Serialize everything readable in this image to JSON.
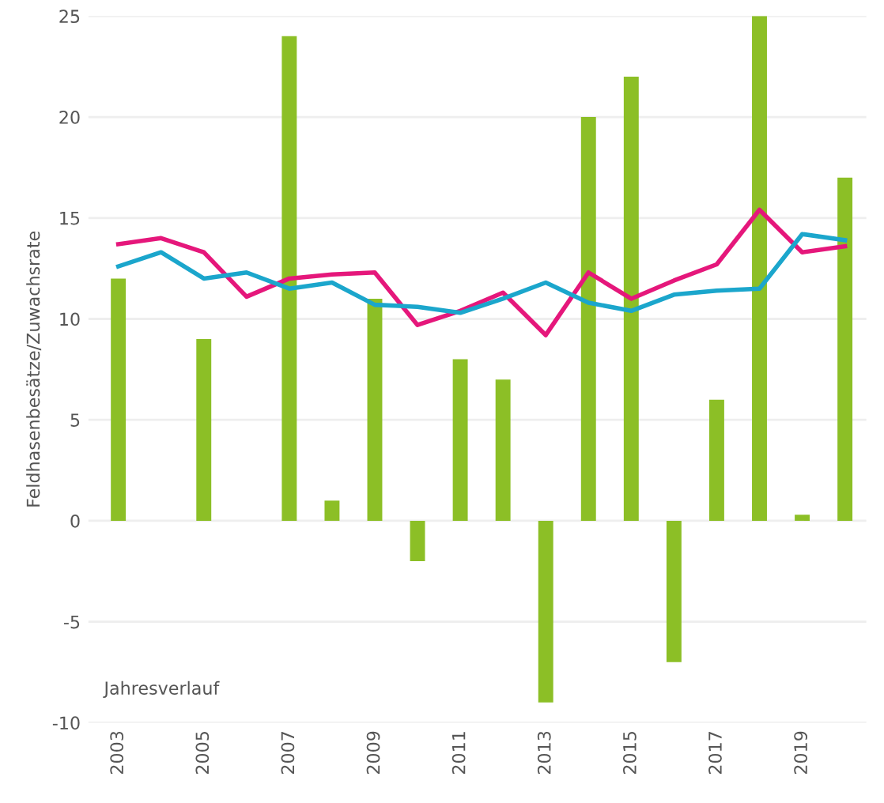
{
  "chart_data": {
    "type": "bar",
    "ylabel": "Feldhasenbesätze/Zuwachsrate",
    "annotations": [
      "Jahresverlauf"
    ],
    "categories": [
      "2003",
      null,
      "2005",
      null,
      "2007",
      null,
      "2009",
      null,
      "2011",
      null,
      "2013",
      null,
      "2015",
      null,
      "2017",
      null,
      "2019",
      null
    ],
    "series": [
      {
        "color": "#8cbf26",
        "values": [
          12,
          0,
          9,
          0,
          24,
          1,
          11,
          -2,
          8,
          7,
          -9,
          20,
          22,
          -7,
          6,
          25,
          0.3,
          17
        ]
      },
      {
        "type": "line",
        "color": "#e5177b",
        "values": [
          13.7,
          14.0,
          13.3,
          11.1,
          12.0,
          12.2,
          12.3,
          9.7,
          10.4,
          11.3,
          9.2,
          12.3,
          11.0,
          11.9,
          12.7,
          15.4,
          13.3,
          13.6
        ]
      },
      {
        "type": "line",
        "color": "#1ba6cc",
        "values": [
          12.6,
          13.3,
          12.0,
          12.3,
          11.5,
          11.8,
          10.7,
          10.6,
          10.3,
          11.0,
          11.8,
          10.8,
          10.4,
          11.2,
          11.4,
          11.5,
          14.2,
          13.9
        ]
      }
    ],
    "ylim": [
      -10,
      25
    ],
    "yticks": [
      -10,
      -5,
      0,
      5,
      10,
      15,
      20,
      25
    ],
    "grid": "y"
  }
}
